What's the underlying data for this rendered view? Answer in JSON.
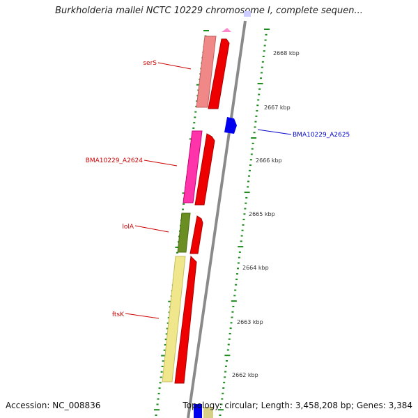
{
  "header": {
    "title": "Burkholderia mallei NCTC 10229 chromosome I, complete sequen..."
  },
  "footer": {
    "accession": "Accession: NC_008836",
    "topology": "Topology: circular; Length: 3,458,208 bp; Genes: 3,384"
  },
  "map": {
    "tick_labels": [
      "2668 kbp",
      "2667 kbp",
      "2666 kbp",
      "2665 kbp",
      "2664 kbp",
      "2663 kbp",
      "2662 kbp"
    ],
    "gene_labels": [
      {
        "text": "serS",
        "color": "#cc0000"
      },
      {
        "text": "BMA10229_A2625",
        "color": "#0000cc"
      },
      {
        "text": "BMA10229_A2624",
        "color": "#cc0000"
      },
      {
        "text": "lolA",
        "color": "#cc0000"
      },
      {
        "text": "ftsK",
        "color": "#cc0000"
      }
    ],
    "colors": {
      "backbone": "#8a8a8a",
      "forward_cds": "#ee0000",
      "reverse_cds": "#0000ee",
      "tick": "#1a8a1a",
      "serS": "#f08888",
      "bma2624": "#ff33aa",
      "lolA": "#6b8e23",
      "ftsK": "#f0e68c"
    }
  }
}
